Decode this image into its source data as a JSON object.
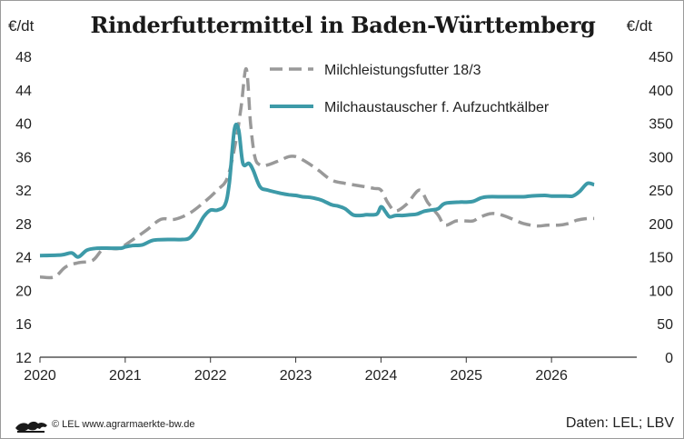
{
  "chart_data": {
    "type": "line",
    "title": "Rinderfuttermittel in Baden-Württemberg",
    "ylabel_left": "€/dt",
    "ylabel_right": "€/dt",
    "x_ticks": [
      "2020",
      "2021",
      "2022",
      "2023",
      "2024",
      "2025",
      "2026"
    ],
    "x_range": [
      2020,
      2027
    ],
    "y_left": {
      "range": [
        12,
        48
      ],
      "ticks": [
        "12",
        "16",
        "20",
        "24",
        "28",
        "32",
        "36",
        "40",
        "44",
        "48"
      ]
    },
    "y_right": {
      "range": [
        0,
        450
      ],
      "ticks": [
        "0",
        "50",
        "100",
        "150",
        "200",
        "250",
        "300",
        "350",
        "400",
        "450"
      ]
    },
    "grid": false,
    "legend_position": "top-right",
    "series": [
      {
        "name": "Milchleistungsfutter 18/3",
        "axis": "left",
        "style": "dashed",
        "color": "#999999",
        "points": [
          [
            2020.0,
            21.6
          ],
          [
            2020.17,
            21.6
          ],
          [
            2020.3,
            22.8
          ],
          [
            2020.45,
            23.3
          ],
          [
            2020.62,
            23.6
          ],
          [
            2020.75,
            25.0
          ],
          [
            2020.92,
            25.0
          ],
          [
            2021.08,
            26.0
          ],
          [
            2021.25,
            27.2
          ],
          [
            2021.42,
            28.5
          ],
          [
            2021.58,
            28.5
          ],
          [
            2021.75,
            29.2
          ],
          [
            2021.92,
            30.5
          ],
          [
            2022.08,
            32.0
          ],
          [
            2022.2,
            33.5
          ],
          [
            2022.3,
            38.0
          ],
          [
            2022.36,
            42.0
          ],
          [
            2022.42,
            46.5
          ],
          [
            2022.47,
            40.0
          ],
          [
            2022.52,
            36.0
          ],
          [
            2022.58,
            35.0
          ],
          [
            2022.67,
            35.0
          ],
          [
            2022.8,
            35.5
          ],
          [
            2022.92,
            36.0
          ],
          [
            2023.0,
            36.0
          ],
          [
            2023.1,
            35.5
          ],
          [
            2023.25,
            34.5
          ],
          [
            2023.42,
            33.2
          ],
          [
            2023.58,
            32.8
          ],
          [
            2023.75,
            32.5
          ],
          [
            2023.92,
            32.2
          ],
          [
            2024.0,
            32.0
          ],
          [
            2024.08,
            30.5
          ],
          [
            2024.17,
            29.5
          ],
          [
            2024.3,
            30.3
          ],
          [
            2024.45,
            32.0
          ],
          [
            2024.55,
            30.5
          ],
          [
            2024.67,
            29.0
          ],
          [
            2024.75,
            27.8
          ],
          [
            2024.88,
            28.3
          ],
          [
            2025.0,
            28.3
          ],
          [
            2025.08,
            28.3
          ],
          [
            2025.17,
            28.8
          ],
          [
            2025.3,
            29.2
          ],
          [
            2025.42,
            29.0
          ],
          [
            2025.55,
            28.5
          ],
          [
            2025.67,
            28.0
          ],
          [
            2025.83,
            27.7
          ],
          [
            2025.95,
            27.8
          ],
          [
            2026.08,
            27.8
          ],
          [
            2026.2,
            28.0
          ],
          [
            2026.3,
            28.4
          ],
          [
            2026.42,
            28.6
          ],
          [
            2026.5,
            28.6
          ]
        ]
      },
      {
        "name": "Milchaustauscher f. Aufzuchtkälber",
        "axis": "right",
        "style": "solid",
        "color": "#3d9aa8",
        "points": [
          [
            2020.0,
            152
          ],
          [
            2020.25,
            153
          ],
          [
            2020.37,
            156
          ],
          [
            2020.45,
            150
          ],
          [
            2020.55,
            160
          ],
          [
            2020.67,
            163
          ],
          [
            2020.83,
            163
          ],
          [
            2020.95,
            163
          ],
          [
            2021.0,
            165
          ],
          [
            2021.08,
            167
          ],
          [
            2021.2,
            168
          ],
          [
            2021.33,
            175
          ],
          [
            2021.5,
            176
          ],
          [
            2021.67,
            176
          ],
          [
            2021.75,
            178
          ],
          [
            2021.83,
            190
          ],
          [
            2021.92,
            210
          ],
          [
            2022.0,
            220
          ],
          [
            2022.08,
            220
          ],
          [
            2022.17,
            228
          ],
          [
            2022.22,
            260
          ],
          [
            2022.28,
            340
          ],
          [
            2022.33,
            340
          ],
          [
            2022.38,
            290
          ],
          [
            2022.45,
            290
          ],
          [
            2022.5,
            280
          ],
          [
            2022.58,
            255
          ],
          [
            2022.67,
            250
          ],
          [
            2022.83,
            245
          ],
          [
            2022.92,
            243
          ],
          [
            2023.0,
            242
          ],
          [
            2023.08,
            240
          ],
          [
            2023.17,
            239
          ],
          [
            2023.3,
            235
          ],
          [
            2023.42,
            228
          ],
          [
            2023.5,
            226
          ],
          [
            2023.58,
            222
          ],
          [
            2023.67,
            213
          ],
          [
            2023.75,
            212
          ],
          [
            2023.83,
            213
          ],
          [
            2023.95,
            214
          ],
          [
            2024.0,
            225
          ],
          [
            2024.05,
            218
          ],
          [
            2024.1,
            210
          ],
          [
            2024.17,
            212
          ],
          [
            2024.25,
            212
          ],
          [
            2024.35,
            213
          ],
          [
            2024.42,
            214
          ],
          [
            2024.5,
            218
          ],
          [
            2024.58,
            220
          ],
          [
            2024.67,
            222
          ],
          [
            2024.75,
            230
          ],
          [
            2024.92,
            232
          ],
          [
            2025.0,
            232
          ],
          [
            2025.08,
            233
          ],
          [
            2025.17,
            238
          ],
          [
            2025.25,
            240
          ],
          [
            2025.42,
            240
          ],
          [
            2025.5,
            240
          ],
          [
            2025.67,
            240
          ],
          [
            2025.75,
            241
          ],
          [
            2025.92,
            242
          ],
          [
            2026.0,
            241
          ],
          [
            2026.17,
            241
          ],
          [
            2026.25,
            241
          ],
          [
            2026.33,
            248
          ],
          [
            2026.42,
            260
          ],
          [
            2026.5,
            258
          ]
        ]
      }
    ]
  },
  "footer": {
    "credit": "© LEL www.agrarmaerkte-bw.de",
    "source": "Daten:  LEL; LBV"
  }
}
